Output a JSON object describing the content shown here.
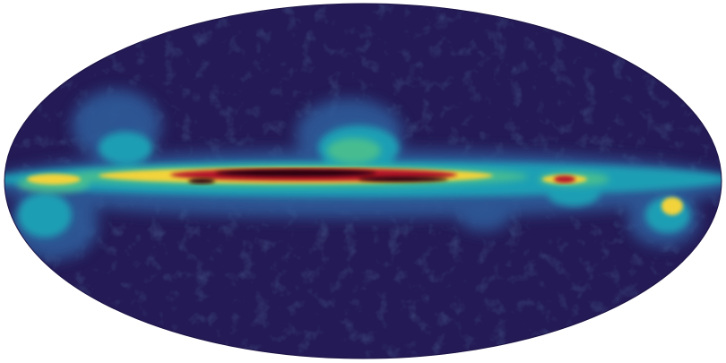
{
  "image": {
    "subject": "all-sky-map",
    "projection": "mollweide",
    "colors": {
      "background": "#ffffff",
      "sky": "#241a55",
      "faint": "#2f4a8a",
      "cyan": "#1f9fb5",
      "green": "#4fc28a",
      "yellow": "#f2d33a",
      "orange": "#e8781f",
      "red": "#b5192a",
      "core": "#2a0610"
    }
  }
}
